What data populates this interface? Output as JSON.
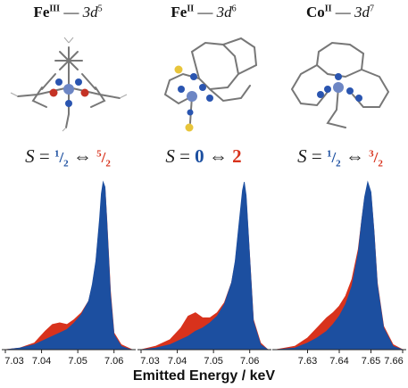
{
  "panels": [
    {
      "ion": "Fe",
      "ox": "III",
      "config_base": "3d",
      "config_exp": "5",
      "spin_low": "1",
      "spin_low_den": "2",
      "spin_high": "5",
      "spin_high_den": "2"
    },
    {
      "ion": "Fe",
      "ox": "II",
      "config_base": "3d",
      "config_exp": "6",
      "spin_low": "0",
      "spin_high": "2"
    },
    {
      "ion": "Co",
      "ox": "II",
      "config_base": "3d",
      "config_exp": "7",
      "spin_low": "1",
      "spin_low_den": "2",
      "spin_high": "3",
      "spin_high_den": "2"
    }
  ],
  "spin_symbol": "S",
  "equals": "=",
  "arrow": "⇔",
  "dash": "—",
  "xlabel": "Emitted Energy / keV",
  "colors": {
    "low_spin": "#1c4fa0",
    "high_spin": "#d8321c"
  },
  "chart_data": [
    {
      "type": "area",
      "xlim": [
        7.03,
        7.065
      ],
      "ticks": [
        "7.03",
        "7.04",
        "7.05",
        "7.06"
      ],
      "tick_values": [
        7.03,
        7.04,
        7.05,
        7.06
      ],
      "series": [
        {
          "color": "#d8321c",
          "x": [
            7.03,
            7.034,
            7.038,
            7.041,
            7.043,
            7.045,
            7.047,
            7.049,
            7.051,
            7.053,
            7.054,
            7.055,
            7.056,
            7.0565,
            7.057,
            7.0575,
            7.058,
            7.059,
            7.06,
            7.062,
            7.064,
            7.065
          ],
          "y": [
            0.0,
            0.01,
            0.04,
            0.11,
            0.15,
            0.16,
            0.15,
            0.18,
            0.22,
            0.29,
            0.38,
            0.52,
            0.76,
            0.9,
            0.98,
            0.96,
            0.78,
            0.35,
            0.1,
            0.03,
            0.01,
            0.0
          ]
        },
        {
          "color": "#1c4fa0",
          "x": [
            7.03,
            7.034,
            7.038,
            7.041,
            7.043,
            7.045,
            7.047,
            7.049,
            7.051,
            7.053,
            7.054,
            7.055,
            7.056,
            7.0565,
            7.057,
            7.0575,
            7.058,
            7.059,
            7.06,
            7.062,
            7.064,
            7.065
          ],
          "y": [
            0.0,
            0.01,
            0.03,
            0.06,
            0.08,
            0.1,
            0.12,
            0.16,
            0.21,
            0.29,
            0.39,
            0.53,
            0.78,
            0.93,
            1.0,
            0.97,
            0.77,
            0.33,
            0.09,
            0.02,
            0.005,
            0.0
          ]
        }
      ]
    },
    {
      "type": "area",
      "xlim": [
        7.03,
        7.065
      ],
      "ticks": [
        "7.03",
        "7.04",
        "7.05",
        "7.06"
      ],
      "tick_values": [
        7.03,
        7.04,
        7.05,
        7.06
      ],
      "series": [
        {
          "color": "#d8321c",
          "x": [
            7.03,
            7.034,
            7.038,
            7.041,
            7.043,
            7.045,
            7.047,
            7.049,
            7.051,
            7.053,
            7.055,
            7.056,
            7.057,
            7.058,
            7.0585,
            7.059,
            7.06,
            7.061,
            7.063,
            7.065
          ],
          "y": [
            0.0,
            0.02,
            0.06,
            0.13,
            0.2,
            0.22,
            0.19,
            0.19,
            0.22,
            0.28,
            0.4,
            0.52,
            0.72,
            0.92,
            0.98,
            0.9,
            0.55,
            0.18,
            0.04,
            0.0
          ]
        },
        {
          "color": "#1c4fa0",
          "x": [
            7.03,
            7.034,
            7.038,
            7.041,
            7.043,
            7.045,
            7.047,
            7.049,
            7.051,
            7.053,
            7.055,
            7.056,
            7.057,
            7.058,
            7.0585,
            7.059,
            7.06,
            7.061,
            7.063,
            7.065
          ],
          "y": [
            0.0,
            0.01,
            0.03,
            0.06,
            0.08,
            0.11,
            0.13,
            0.16,
            0.2,
            0.27,
            0.4,
            0.53,
            0.74,
            0.95,
            1.0,
            0.92,
            0.55,
            0.17,
            0.03,
            0.0
          ]
        }
      ]
    },
    {
      "type": "area",
      "xlim": [
        7.62,
        7.66
      ],
      "ticks": [
        "7.63",
        "7.64",
        "7.65",
        "7.66"
      ],
      "tick_values": [
        7.63,
        7.64,
        7.65,
        7.66
      ],
      "series": [
        {
          "color": "#d8321c",
          "x": [
            7.62,
            7.626,
            7.63,
            7.633,
            7.636,
            7.638,
            7.64,
            7.642,
            7.644,
            7.646,
            7.647,
            7.648,
            7.649,
            7.65,
            7.651,
            7.652,
            7.654,
            7.657,
            7.66
          ],
          "y": [
            0.0,
            0.02,
            0.07,
            0.13,
            0.19,
            0.22,
            0.26,
            0.32,
            0.42,
            0.6,
            0.76,
            0.9,
            0.99,
            0.93,
            0.7,
            0.4,
            0.14,
            0.03,
            0.0
          ]
        },
        {
          "color": "#1c4fa0",
          "x": [
            7.62,
            7.626,
            7.63,
            7.633,
            7.636,
            7.638,
            7.64,
            7.642,
            7.644,
            7.646,
            7.647,
            7.648,
            7.649,
            7.65,
            7.651,
            7.652,
            7.654,
            7.657,
            7.66
          ],
          "y": [
            0.0,
            0.01,
            0.04,
            0.07,
            0.11,
            0.15,
            0.2,
            0.27,
            0.38,
            0.58,
            0.76,
            0.91,
            1.0,
            0.94,
            0.7,
            0.39,
            0.13,
            0.02,
            0.0
          ]
        }
      ]
    }
  ]
}
